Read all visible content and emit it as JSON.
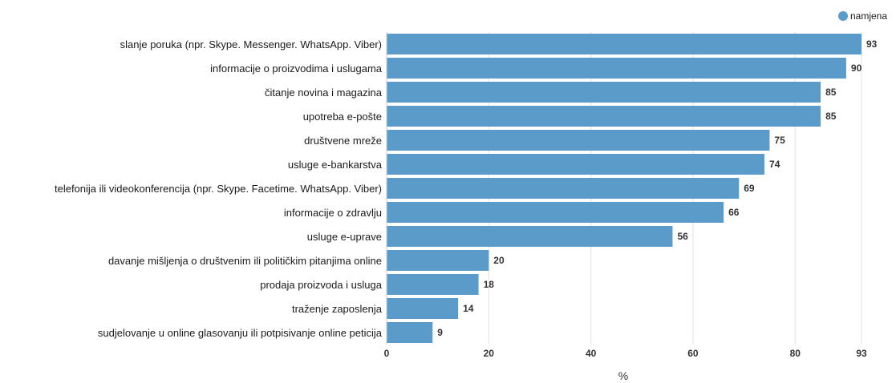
{
  "chart_data": {
    "type": "bar",
    "orientation": "horizontal",
    "categories": [
      "slanje poruka (npr. Skype. Messenger. WhatsApp. Viber)",
      "informacije o proizvodima i uslugama",
      "čitanje novina i magazina",
      "upotreba e-pošte",
      "društvene mreže",
      "usluge e-bankarstva",
      "telefonija ili videokonferencija (npr. Skype. Facetime. WhatsApp. Viber)",
      "informacije o zdravlju",
      "usluge e-uprave",
      "davanje mišljenja o društvenim ili političkim pitanjima online",
      "prodaja proizvoda i usluga",
      "traženje zaposlenja",
      "sudjelovanje u online glasovanju ili potpisivanje online peticija"
    ],
    "series": [
      {
        "name": "namjena",
        "color": "#5a9bca",
        "values": [
          93,
          90,
          85,
          85,
          75,
          74,
          69,
          66,
          56,
          20,
          18,
          14,
          9
        ]
      }
    ],
    "xlabel": "%",
    "ylabel": "",
    "xlim": [
      0,
      93
    ],
    "xticks": [
      "0",
      "20",
      "40",
      "60",
      "80",
      "93"
    ],
    "grid": true,
    "legend_position": "top-right"
  }
}
